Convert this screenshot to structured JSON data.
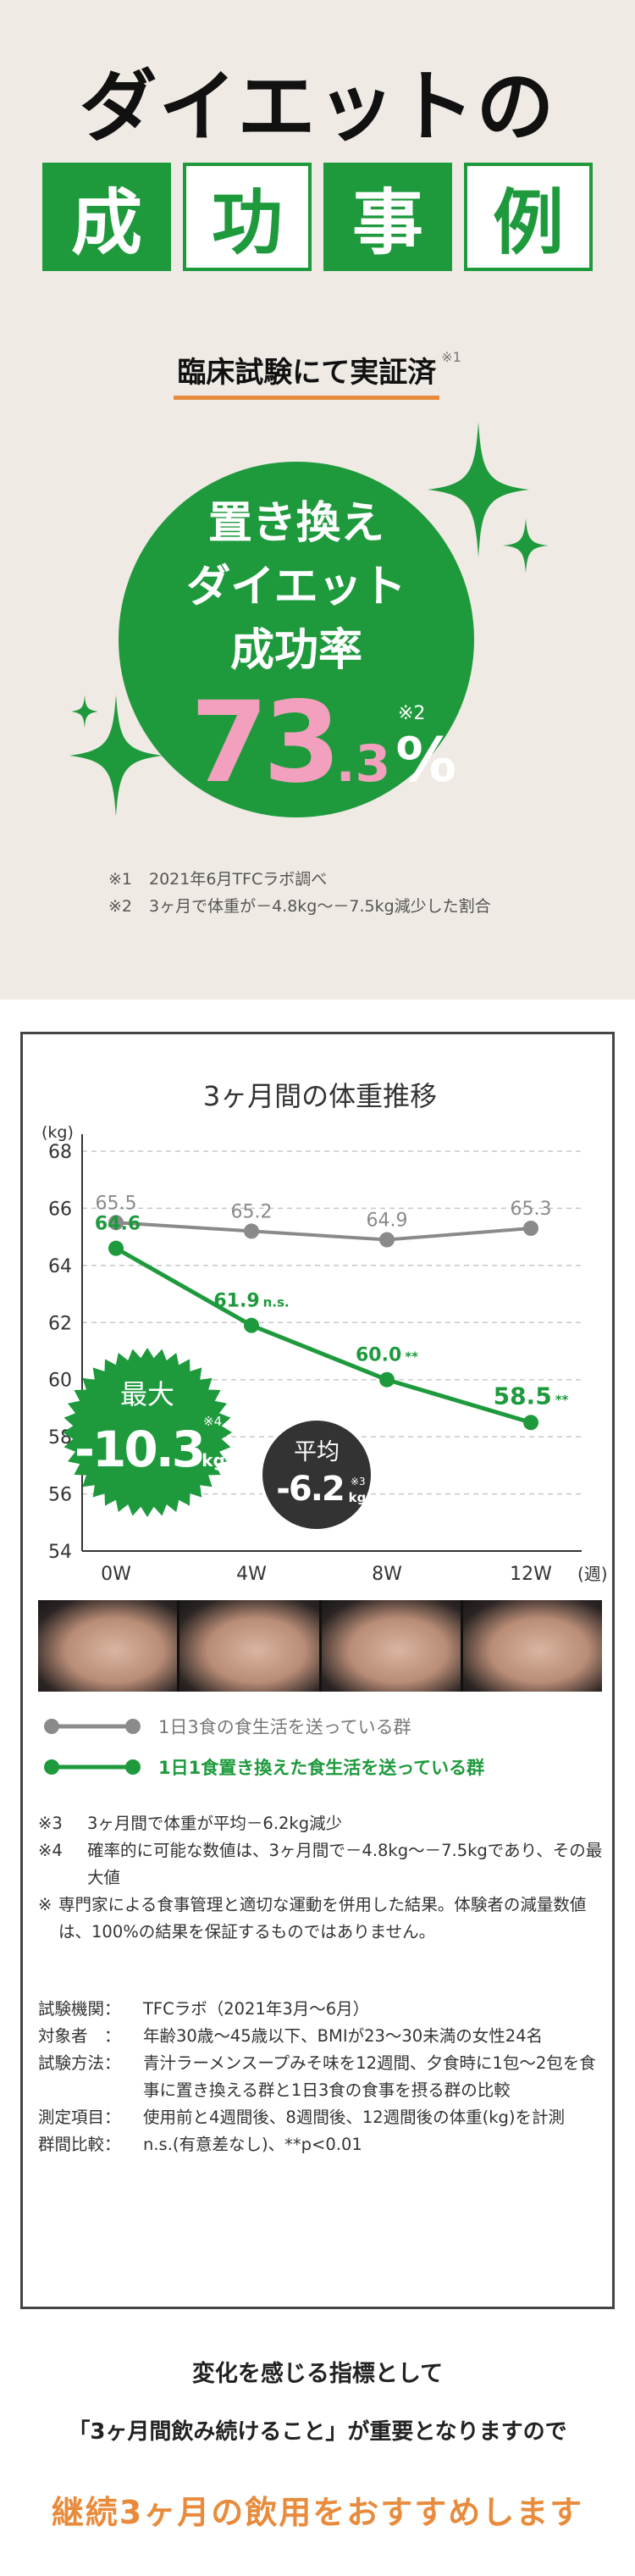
{
  "hero": {
    "title": "ダイエットの",
    "blocks": [
      {
        "char": "成",
        "style": "filled"
      },
      {
        "char": "功",
        "style": "outline"
      },
      {
        "char": "事",
        "style": "filled"
      },
      {
        "char": "例",
        "style": "outline"
      }
    ],
    "verified": "臨床試験にて実証済",
    "verified_mark": "※1",
    "circle_lines": [
      "置き換え",
      "ダイエット",
      "成功率"
    ],
    "rate_int": "73",
    "rate_dec": ".3",
    "rate_unit": "%",
    "rate_mark": "※2",
    "footnotes": [
      {
        "mark": "※1",
        "text": "2021年6月TFCラボ調べ"
      },
      {
        "mark": "※2",
        "text": "3ヶ月で体重が－4.8kg～－7.5kg減少した割合"
      }
    ],
    "colors": {
      "green": "#1e9a3d",
      "pink": "#f2a0bd",
      "orange": "#e88b3c",
      "beige": "#efeae4"
    }
  },
  "chart_data": {
    "type": "line",
    "title": "3ヶ月間の体重推移",
    "ylabel": "(kg)",
    "xlabel": "(週)",
    "categories": [
      "0W",
      "4W",
      "8W",
      "12W"
    ],
    "ylim": [
      54,
      68
    ],
    "yticks": [
      54,
      56,
      58,
      60,
      62,
      64,
      66,
      68
    ],
    "grid": true,
    "series": [
      {
        "name": "1日3食の食生活を送っている群",
        "values": [
          65.5,
          65.2,
          64.9,
          65.3
        ],
        "labels": [
          "65.5",
          "65.2",
          "64.9",
          "65.3"
        ],
        "suffix": [
          "",
          "",
          "",
          ""
        ],
        "color": "#8a8a8a"
      },
      {
        "name": "1日1食置き換えた食生活を送っている群",
        "values": [
          64.6,
          61.9,
          60.0,
          58.5
        ],
        "labels": [
          "64.6",
          "61.9",
          "60.0",
          "58.5"
        ],
        "suffix": [
          "",
          "n.s.",
          "**",
          "**"
        ],
        "color": "#1e9a3d"
      }
    ],
    "max_badge": {
      "label": "最大",
      "value": "-10.3",
      "unit": "kg",
      "mark": "※4"
    },
    "avg_badge": {
      "label": "平均",
      "value": "-6.2",
      "unit": "kg",
      "mark": "※3"
    }
  },
  "chart_notes": [
    {
      "mark": "※3",
      "text": "3ヶ月間で体重が平均－6.2kg減少"
    },
    {
      "mark": "※4",
      "text": "確率的に可能な数値は、3ヶ月間で－4.8kg～－7.5kgであり、その最大値"
    },
    {
      "mark": "※",
      "text": "専門家による食事管理と適切な運動を併用した結果。体験者の減量数値は、100%の結果を保証するものではありません。"
    }
  ],
  "meta": [
    {
      "key": "試験機関：",
      "val": "TFCラボ（2021年3月～6月）"
    },
    {
      "key": "対象者　：",
      "val": "年齢30歳～45歳以下、BMIが23～30未満の女性24名"
    },
    {
      "key": "試験方法：",
      "val": "青汁ラーメンスープみそ味を12週間、夕食時に1包～2包を食事に置き換える群と1日3食の食事を摂る群の比較"
    },
    {
      "key": "測定項目：",
      "val": "使用前と4週間後、8週間後、12週間後の体重(kg)を計測"
    },
    {
      "key": "群間比較：",
      "val": "n.s.(有意差なし)、**p<0.01"
    }
  ],
  "bottom": {
    "line1": "変化を感じる指標として",
    "line2": "「3ヶ月間飲み続けること」が重要となりますので",
    "line3": "継続3ヶ月の飲用をおすすめします"
  }
}
